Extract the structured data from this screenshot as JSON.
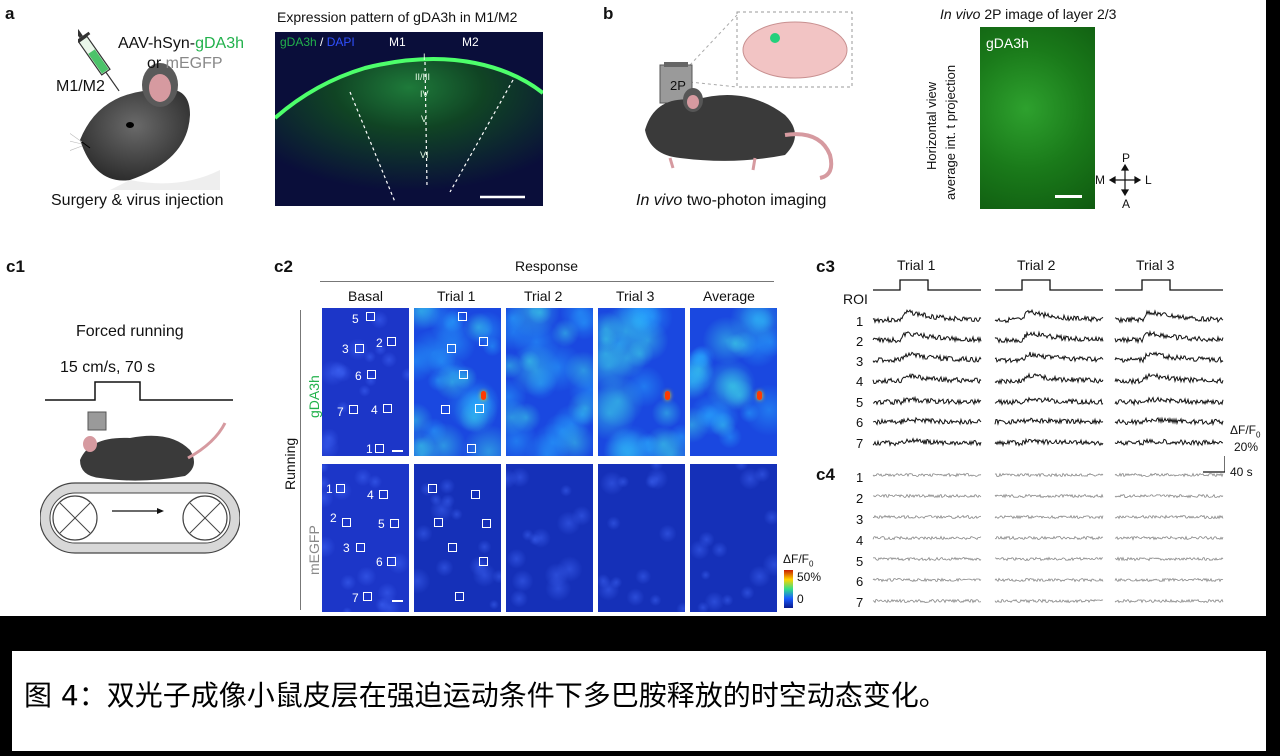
{
  "panel_letters": {
    "a": "a",
    "b": "b",
    "c1": "c1",
    "c2": "c2",
    "c3": "c3",
    "c4": "c4"
  },
  "panel_a": {
    "virus_prefix": "AAV-hSyn-",
    "virus_green": "gDA3h",
    "virus_or": "or ",
    "virus_grey": "mEGFP",
    "region_label": "M1/M2",
    "surgery_caption": "Surgery & virus injection",
    "section_title": "Expression pattern of gDA3h in M1/M2",
    "stain_green": "gDA3h",
    "stain_sep": " / ",
    "stain_blue": "DAPI",
    "area_m1": "M1",
    "area_m2": "M2",
    "layers": [
      "I",
      "II/III",
      "IV",
      "V",
      "VI"
    ]
  },
  "panel_b": {
    "scope_label": "2P",
    "imaging_italic": "In vivo",
    "imaging_rest": " two-photon imaging",
    "image_title_italic": "In vivo",
    "image_title_rest": " 2P image of layer 2/3",
    "image_label": "gDA3h",
    "side_label_1": "Horizontal view",
    "side_label_2": "average int. t projection",
    "compass": {
      "p": "P",
      "a": "A",
      "m": "M",
      "l": "L"
    }
  },
  "panel_c1": {
    "title": "Forced running",
    "stimulus": "15 cm/s, 70 s"
  },
  "panel_c2": {
    "response_header": "Response",
    "columns": [
      "Basal",
      "Trial 1",
      "Trial 2",
      "Trial 3",
      "Average"
    ],
    "running_label": "Running",
    "row_gda3h": "gDA3h",
    "row_megfp": "mEGFP",
    "gda3h_rois": [
      "5",
      "3",
      "2",
      "6",
      "7",
      "4",
      "1"
    ],
    "megfp_rois": [
      "1",
      "4",
      "2",
      "5",
      "3",
      "6",
      "7"
    ],
    "colorbar_title": "ΔF/F",
    "colorbar_sub": "0",
    "colorbar_max": "50%",
    "colorbar_min": "0"
  },
  "panel_c3": {
    "trials": [
      "Trial 1",
      "Trial 2",
      "Trial 3"
    ],
    "roi_header": "ROI",
    "rois": [
      "1",
      "2",
      "3",
      "4",
      "5",
      "6",
      "7"
    ],
    "scale_title": "ΔF/F",
    "scale_sub": "0",
    "scale_y": "20%",
    "scale_x": "40 s"
  },
  "panel_c4": {
    "rois": [
      "1",
      "2",
      "3",
      "4",
      "5",
      "6",
      "7"
    ]
  },
  "caption": "图 4：双光子成像小鼠皮层在强迫运动条件下多巴胺释放的时空动态变化。",
  "colors": {
    "green": "#22b14c",
    "black_bg": "#000000",
    "heat_low": "#0a1a8c",
    "heat_high": "#ff2a00"
  }
}
